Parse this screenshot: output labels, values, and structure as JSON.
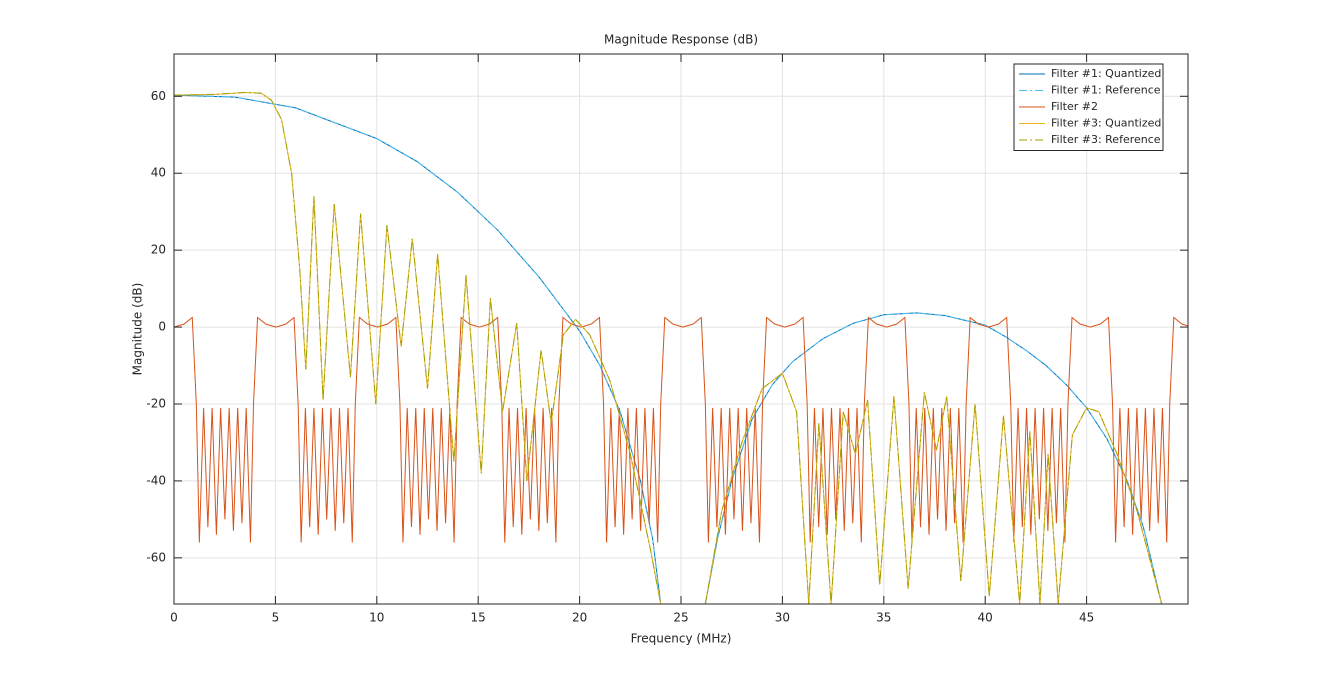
{
  "chart_data": {
    "type": "line",
    "title": "Magnitude Response (dB)",
    "x_label": "Frequency (MHz)",
    "y_label": "Magnitude (dB)",
    "xlim": [
      0,
      50
    ],
    "ylim": [
      -72,
      71
    ],
    "xticks": [
      0,
      5,
      10,
      15,
      20,
      25,
      30,
      35,
      40,
      45
    ],
    "yticks": [
      -60,
      -40,
      -20,
      0,
      20,
      40,
      60
    ],
    "grid": true,
    "legend_loc": "upper right",
    "series": [
      {
        "name": "Filter #1: Quantized",
        "color": "#0072BD",
        "linestyle": "solid",
        "x": [
          0,
          3,
          6,
          8,
          10,
          12,
          14,
          16,
          18,
          19,
          20,
          21,
          22,
          23,
          23.6,
          24,
          25,
          26.2,
          26.8,
          27.5,
          28.5,
          29.5,
          30.5,
          32,
          33.5,
          35,
          36.6,
          38,
          40,
          41,
          42,
          43,
          44,
          45,
          46,
          47,
          47.8,
          48.7
        ],
        "values": [
          60.3,
          59.8,
          57,
          53,
          49,
          43,
          35,
          25,
          13,
          6,
          -1,
          -10,
          -22,
          -40,
          -55,
          -72,
          null,
          -72,
          -55,
          -40,
          -24,
          -15,
          -9,
          -3,
          1,
          3.2,
          3.7,
          3,
          0.5,
          -2.5,
          -6,
          -10,
          -15,
          -21,
          -29,
          -40,
          -52,
          -72
        ]
      },
      {
        "name": "Filter #1: Reference",
        "color": "#4DBEEE",
        "linestyle": "dashdot",
        "x": [
          0,
          3,
          6,
          8,
          10,
          12,
          14,
          16,
          18,
          19,
          20,
          21,
          22,
          23,
          23.6,
          24,
          25,
          26.2,
          26.8,
          27.5,
          28.5,
          29.5,
          30.5,
          32,
          33.5,
          35,
          36.6,
          38,
          40,
          41,
          42,
          43,
          44,
          45,
          46,
          47,
          47.8,
          48.7
        ],
        "values": [
          60.3,
          59.8,
          57,
          53,
          49,
          43,
          35,
          25,
          13,
          6,
          -1,
          -10,
          -22,
          -40,
          -55,
          -72,
          null,
          -72,
          -55,
          -40,
          -24,
          -15,
          -9,
          -3,
          1,
          3.2,
          3.7,
          3,
          0.5,
          -2.5,
          -6,
          -10,
          -15,
          -21,
          -29,
          -40,
          -52,
          -72
        ]
      },
      {
        "name": "Filter #2",
        "color": "#D95319",
        "linestyle": "solid",
        "x": [
          0,
          0.5,
          0.9,
          1.1,
          1.25,
          1.46,
          1.67,
          1.88,
          2.09,
          2.3,
          2.51,
          2.72,
          2.93,
          3.14,
          3.35,
          3.56,
          3.77,
          3.92,
          4.12,
          4.52,
          5.02,
          5.52,
          5.92,
          6.12,
          6.27,
          6.48,
          6.69,
          6.9,
          7.11,
          7.32,
          7.53,
          7.74,
          7.95,
          8.16,
          8.37,
          8.58,
          8.79,
          8.94,
          9.14,
          9.54,
          10.04,
          10.54,
          10.94,
          11.14,
          11.29,
          11.5,
          11.71,
          11.92,
          12.13,
          12.34,
          12.55,
          12.76,
          12.97,
          13.18,
          13.39,
          13.6,
          13.81,
          13.96,
          14.16,
          14.56,
          15.06,
          15.56,
          15.96,
          16.16,
          16.31,
          16.52,
          16.73,
          16.94,
          17.15,
          17.36,
          17.57,
          17.78,
          17.99,
          18.2,
          18.41,
          18.62,
          18.83,
          18.98,
          19.18,
          19.58,
          20.08,
          20.58,
          20.98,
          21.18,
          21.33,
          21.54,
          21.75,
          21.96,
          22.17,
          22.38,
          22.59,
          22.8,
          23.01,
          23.22,
          23.43,
          23.64,
          23.85,
          24,
          24.2,
          24.6,
          25.1,
          25.6,
          26,
          26.2,
          26.35,
          26.56,
          26.77,
          26.98,
          27.19,
          27.4,
          27.61,
          27.82,
          28.03,
          28.24,
          28.45,
          28.66,
          28.87,
          29.02,
          29.22,
          29.62,
          30.12,
          30.62,
          31.02,
          31.22,
          31.37,
          31.58,
          31.79,
          32,
          32.21,
          32.42,
          32.63,
          32.84,
          33.05,
          33.26,
          33.47,
          33.68,
          33.89,
          34.04,
          34.24,
          34.64,
          35.14,
          35.64,
          36.04,
          36.24,
          36.39,
          36.6,
          36.81,
          37.02,
          37.23,
          37.44,
          37.65,
          37.86,
          38.07,
          38.28,
          38.49,
          38.7,
          38.91,
          39.06,
          39.26,
          39.66,
          40.16,
          40.66,
          41.06,
          41.26,
          41.41,
          41.62,
          41.83,
          42.04,
          42.25,
          42.46,
          42.67,
          42.88,
          43.09,
          43.3,
          43.51,
          43.72,
          43.93,
          44.08,
          44.28,
          44.68,
          45.18,
          45.68,
          46.08,
          46.28,
          46.43,
          46.64,
          46.85,
          47.06,
          47.27,
          47.48,
          47.69,
          47.9,
          48.11,
          48.32,
          48.53,
          48.74,
          48.95,
          49.1,
          49.3,
          49.7,
          50
        ],
        "values": [
          0,
          0.8,
          2.5,
          -20,
          -56,
          -21,
          -52,
          -21,
          -54,
          -21,
          -50,
          -21,
          -53,
          -21,
          -51,
          -21,
          -56,
          -20,
          2.5,
          0.8,
          0,
          0.8,
          2.5,
          -20,
          -56,
          -21,
          -52,
          -21,
          -54,
          -21,
          -50,
          -21,
          -53,
          -21,
          -51,
          -21,
          -56,
          -20,
          2.5,
          0.8,
          0,
          0.8,
          2.5,
          -20,
          -56,
          -21,
          -52,
          -21,
          -54,
          -21,
          -50,
          -21,
          -53,
          -21,
          -51,
          -21,
          -56,
          -20,
          2.5,
          0.8,
          0,
          0.8,
          2.5,
          -20,
          -56,
          -21,
          -52,
          -21,
          -54,
          -21,
          -50,
          -21,
          -53,
          -21,
          -51,
          -21,
          -56,
          -20,
          2.5,
          0.8,
          0,
          0.8,
          2.5,
          -20,
          -56,
          -21,
          -52,
          -21,
          -54,
          -21,
          -50,
          -21,
          -53,
          -21,
          -51,
          -21,
          -56,
          -20,
          2.5,
          0.8,
          0,
          0.8,
          2.5,
          -20,
          -56,
          -21,
          -52,
          -21,
          -54,
          -21,
          -50,
          -21,
          -53,
          -21,
          -51,
          -21,
          -56,
          -20,
          2.5,
          0.8,
          0,
          0.8,
          2.5,
          -20,
          -56,
          -21,
          -52,
          -21,
          -54,
          -21,
          -50,
          -21,
          -53,
          -21,
          -51,
          -21,
          -56,
          -20,
          2.5,
          0.8,
          0,
          0.8,
          2.5,
          -20,
          -56,
          -21,
          -52,
          -21,
          -54,
          -21,
          -50,
          -21,
          -53,
          -21,
          -51,
          -21,
          -56,
          -20,
          2.5,
          0.8,
          0,
          0.8,
          2.5,
          -20,
          -56,
          -21,
          -52,
          -21,
          -54,
          -21,
          -50,
          -21,
          -53,
          -21,
          -51,
          -21,
          -56,
          -20,
          2.5,
          0.8,
          0,
          0.8,
          2.5,
          -20,
          -56,
          -21,
          -52,
          -21,
          -54,
          -21,
          -50,
          -21,
          -53,
          -21,
          -51,
          -21,
          -56,
          -20,
          2.5,
          0.8,
          0.3
        ]
      },
      {
        "name": "Filter #3: Quantized",
        "color": "#EDB120",
        "linestyle": "solid",
        "x": [
          0,
          2,
          3.5,
          4.3,
          4.8,
          5.3,
          5.8,
          6.2,
          6.5,
          6.9,
          7.35,
          7.9,
          8.7,
          9.2,
          9.95,
          10.5,
          11.2,
          11.75,
          12.5,
          13,
          13.8,
          14.4,
          15.15,
          15.6,
          16.2,
          16.9,
          17.4,
          18.1,
          18.6,
          19.2,
          19.8,
          20.5,
          21.5,
          22.5,
          23.5,
          24,
          25,
          26.2,
          27,
          28,
          29,
          30,
          30.7,
          31.3,
          31.8,
          32.4,
          33,
          33.6,
          34.2,
          34.8,
          35.5,
          36.2,
          37,
          37.6,
          38.1,
          38.8,
          39.5,
          40.2,
          40.9,
          41.7,
          42.2,
          42.7,
          43.1,
          43.6,
          44.3,
          45,
          45.6,
          46.5,
          47.5,
          48.7
        ],
        "values": [
          60.3,
          60.5,
          61,
          60.8,
          59,
          54,
          40,
          15,
          -11,
          34,
          -19,
          32,
          -13,
          29.5,
          -20,
          26.5,
          -5,
          23,
          -16,
          19,
          -35,
          13.5,
          -38,
          7.5,
          -22,
          1,
          -40,
          -6,
          -25,
          -2,
          2,
          -2,
          -14,
          -33,
          -58,
          -72,
          null,
          -72,
          -48,
          -30,
          -16,
          -12,
          -22,
          -72,
          -25,
          -72,
          -22,
          -33,
          -19,
          -67,
          -18,
          -68,
          -17,
          -32,
          -18,
          -66,
          -20,
          -70,
          -23,
          -72,
          -27,
          -72,
          -33,
          -72,
          -28,
          -21,
          -22,
          -33,
          -48,
          -72
        ]
      },
      {
        "name": "Filter #3: Reference",
        "color": "#A2A200",
        "linestyle": "dashdot",
        "x": [
          0,
          2,
          3.5,
          4.3,
          4.8,
          5.3,
          5.8,
          6.2,
          6.5,
          6.9,
          7.35,
          7.9,
          8.7,
          9.2,
          9.95,
          10.5,
          11.2,
          11.75,
          12.5,
          13,
          13.8,
          14.4,
          15.15,
          15.6,
          16.2,
          16.9,
          17.4,
          18.1,
          18.6,
          19.2,
          19.8,
          20.5,
          21.5,
          22.5,
          23.5,
          24,
          25,
          26.2,
          27,
          28,
          29,
          30,
          30.7,
          31.3,
          31.8,
          32.4,
          33,
          33.6,
          34.2,
          34.8,
          35.5,
          36.2,
          37,
          37.6,
          38.1,
          38.8,
          39.5,
          40.2,
          40.9,
          41.7,
          42.2,
          42.7,
          43.1,
          43.6,
          44.3,
          45,
          45.6,
          46.5,
          47.5,
          48.7
        ],
        "values": [
          60.3,
          60.5,
          61,
          60.8,
          59,
          54,
          40,
          15,
          -11,
          34,
          -19,
          32,
          -13,
          29.5,
          -20,
          26.5,
          -5,
          23,
          -16,
          19,
          -35,
          13.5,
          -38,
          7.5,
          -22,
          1,
          -40,
          -6,
          -25,
          -2,
          2,
          -2,
          -14,
          -33,
          -58,
          -72,
          null,
          -72,
          -48,
          -30,
          -16,
          -12,
          -22,
          -72,
          -25,
          -72,
          -22,
          -33,
          -19,
          -67,
          -18,
          -68,
          -17,
          -32,
          -18,
          -66,
          -20,
          -70,
          -23,
          -72,
          -27,
          -72,
          -33,
          -72,
          -28,
          -21,
          -22,
          -33,
          -48,
          -72
        ]
      }
    ]
  }
}
